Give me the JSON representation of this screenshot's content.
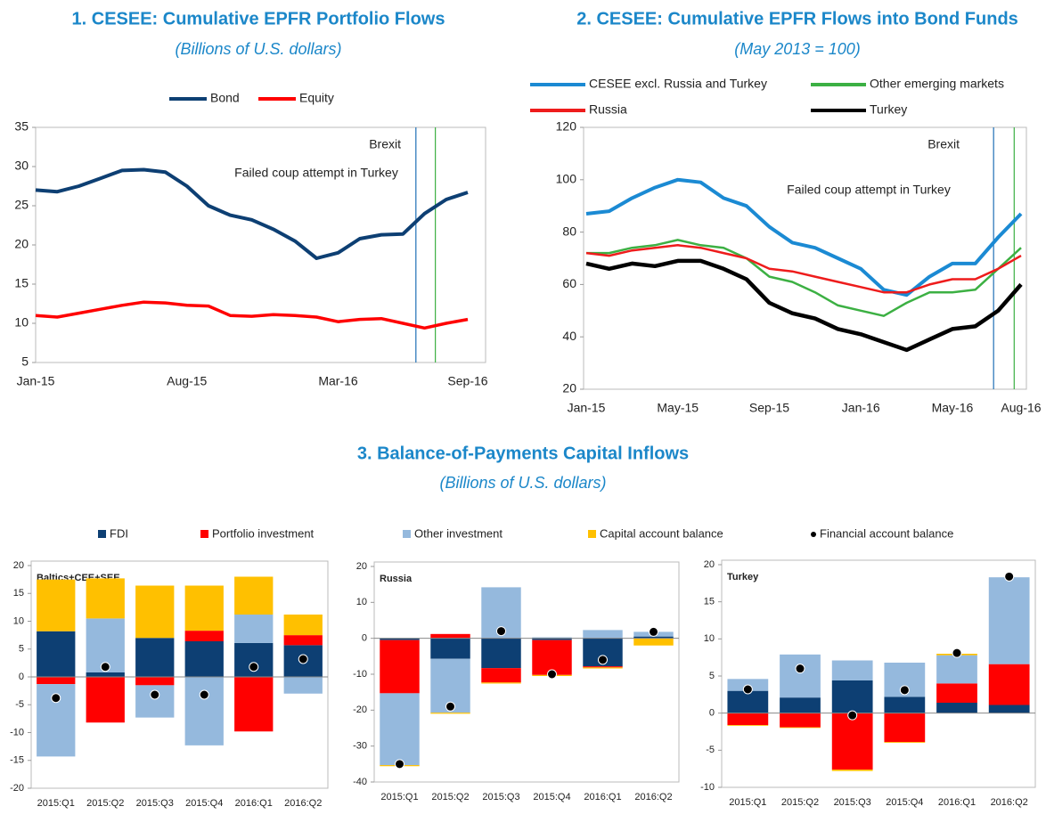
{
  "chart_data": [
    {
      "type": "line",
      "title": "1. CESEE: Cumulative EPFR Portfolio Flows",
      "subtitle": "(Billions of U.S. dollars)",
      "categories": [
        "Jan-15",
        null,
        null,
        null,
        null,
        null,
        null,
        "Aug-15",
        null,
        null,
        null,
        null,
        null,
        null,
        "Mar-16",
        null,
        null,
        null,
        null,
        null,
        "Sep-16"
      ],
      "series": [
        {
          "name": "Bond",
          "color": "#0d3f73",
          "values": [
            27,
            26.8,
            27.5,
            28.5,
            29.5,
            29.6,
            29.3,
            27.5,
            25,
            23.8,
            23.2,
            22,
            20.5,
            18.3,
            19,
            20.8,
            21.3,
            21.4,
            24,
            25.8,
            26.7
          ]
        },
        {
          "name": "Equity",
          "color": "#ff0000",
          "values": [
            11,
            10.8,
            11.3,
            11.8,
            12.3,
            12.7,
            12.6,
            12.3,
            12.2,
            11,
            10.9,
            11.1,
            11,
            10.8,
            10.2,
            10.5,
            10.6,
            10,
            9.4,
            10,
            10.5
          ]
        }
      ],
      "ylim": [
        5,
        35
      ],
      "yticks": [
        5,
        10,
        15,
        20,
        25,
        30,
        35
      ],
      "grid": false,
      "events": [
        {
          "label": "Brexit",
          "x": 17.6,
          "color": "#1f6fb5"
        },
        {
          "label": "Failed coup attempt in Turkey",
          "x": 18.5,
          "color": "#3cb043"
        }
      ]
    },
    {
      "type": "line",
      "title": "2. CESEE: Cumulative EPFR Flows into Bond Funds",
      "subtitle": "(May 2013 = 100)",
      "categories": [
        "Jan-15",
        null,
        null,
        null,
        "May-15",
        null,
        null,
        null,
        "Sep-15",
        null,
        null,
        null,
        "Jan-16",
        null,
        null,
        null,
        "May-16",
        null,
        null,
        "Aug-16"
      ],
      "series": [
        {
          "name": "CESEE excl. Russia and Turkey",
          "color": "#1b8ad3",
          "values": [
            87,
            88,
            93,
            97,
            100,
            99,
            93,
            90,
            82,
            76,
            74,
            70,
            66,
            58,
            56,
            63,
            68,
            68,
            78,
            87
          ]
        },
        {
          "name": "Other emerging markets",
          "color": "#3cb043",
          "values": [
            72,
            72,
            74,
            75,
            77,
            75,
            74,
            70,
            63,
            61,
            57,
            52,
            50,
            48,
            53,
            57,
            57,
            58,
            66,
            74
          ]
        },
        {
          "name": "Russia",
          "color": "#ee1c1c",
          "values": [
            72,
            71,
            73,
            74,
            75,
            74,
            72,
            70,
            66,
            65,
            63,
            61,
            59,
            57,
            57,
            60,
            62,
            62,
            66,
            71
          ]
        },
        {
          "name": "Turkey",
          "color": "#000000",
          "values": [
            68,
            66,
            68,
            67,
            69,
            69,
            66,
            62,
            53,
            49,
            47,
            43,
            41,
            38,
            35,
            39,
            43,
            44,
            50,
            60
          ]
        }
      ],
      "ylim": [
        20,
        120
      ],
      "yticks": [
        20,
        40,
        60,
        80,
        100,
        120
      ],
      "grid": false,
      "events": [
        {
          "label": "Brexit",
          "x": 17.8,
          "color": "#1f6fb5"
        },
        {
          "label": "Failed coup attempt in Turkey",
          "x": 18.7,
          "color": "#3cb043"
        }
      ]
    },
    {
      "type": "stacked_bar",
      "title": "3. Balance-of-Payments Capital Inflows",
      "subtitle": "(Billions of U.S. dollars)",
      "categories": [
        "2015:Q1",
        "2015:Q2",
        "2015:Q3",
        "2015:Q4",
        "2016:Q1",
        "2016:Q2"
      ],
      "series": [
        {
          "name": "FDI",
          "color": "#0d3f73"
        },
        {
          "name": "Portfolio investment",
          "color": "#ff0000"
        },
        {
          "name": "Other investment",
          "color": "#95b9dd"
        },
        {
          "name": "Capital account balance",
          "color": "#ffc000"
        }
      ],
      "marker": {
        "name": "Financial account balance",
        "color": "#000000"
      },
      "panels": [
        {
          "label": "Baltics+CEE+SEE",
          "ylim": [
            -20,
            20
          ],
          "yticks": [
            -20,
            -15,
            -10,
            -5,
            0,
            5,
            10,
            15,
            20
          ],
          "values": [
            [
              8.2,
              0.8,
              7,
              6.4,
              6.1,
              5.7
            ],
            [
              -1.3,
              -8.2,
              -1.5,
              1.9,
              -9.8,
              1.8
            ],
            [
              -13,
              9.7,
              -5.8,
              -12.3,
              5.1,
              -3
            ],
            [
              9.3,
              7.2,
              9.4,
              8.1,
              6.8,
              3.7
            ]
          ],
          "financial": [
            -3.8,
            1.8,
            -3.2,
            -3.2,
            1.8,
            3.2
          ]
        },
        {
          "label": "Russia",
          "ylim": [
            -40,
            20
          ],
          "yticks": [
            -40,
            -30,
            -20,
            -10,
            0,
            10,
            20
          ],
          "values": [
            [
              -0.5,
              -5.7,
              -8.3,
              -0.5,
              -7.8,
              0.5
            ],
            [
              -14.8,
              1.2,
              -4,
              -9.7,
              -0.3,
              0
            ],
            [
              -20,
              -15,
              14.2,
              0.3,
              2.3,
              1.3
            ],
            [
              -0.3,
              -0.3,
              -0.3,
              -0.3,
              -0.3,
              -2
            ]
          ],
          "financial": [
            -35,
            -19,
            2,
            -10,
            -6,
            1.8
          ]
        },
        {
          "label": "Turkey",
          "ylim": [
            -10,
            20
          ],
          "yticks": [
            -10,
            -5,
            0,
            5,
            10,
            15,
            20
          ],
          "values": [
            [
              3,
              2.1,
              4.4,
              2.2,
              1.4,
              1.1
            ],
            [
              -1.6,
              -1.9,
              -7.6,
              -3.9,
              2.6,
              5.5
            ],
            [
              1.6,
              5.8,
              2.7,
              4.6,
              3.8,
              11.7
            ],
            [
              -0.1,
              -0.1,
              -0.2,
              -0.1,
              0.2,
              0
            ]
          ],
          "financial": [
            3.2,
            6,
            -0.3,
            3.1,
            8.1,
            18.4
          ]
        }
      ]
    }
  ]
}
